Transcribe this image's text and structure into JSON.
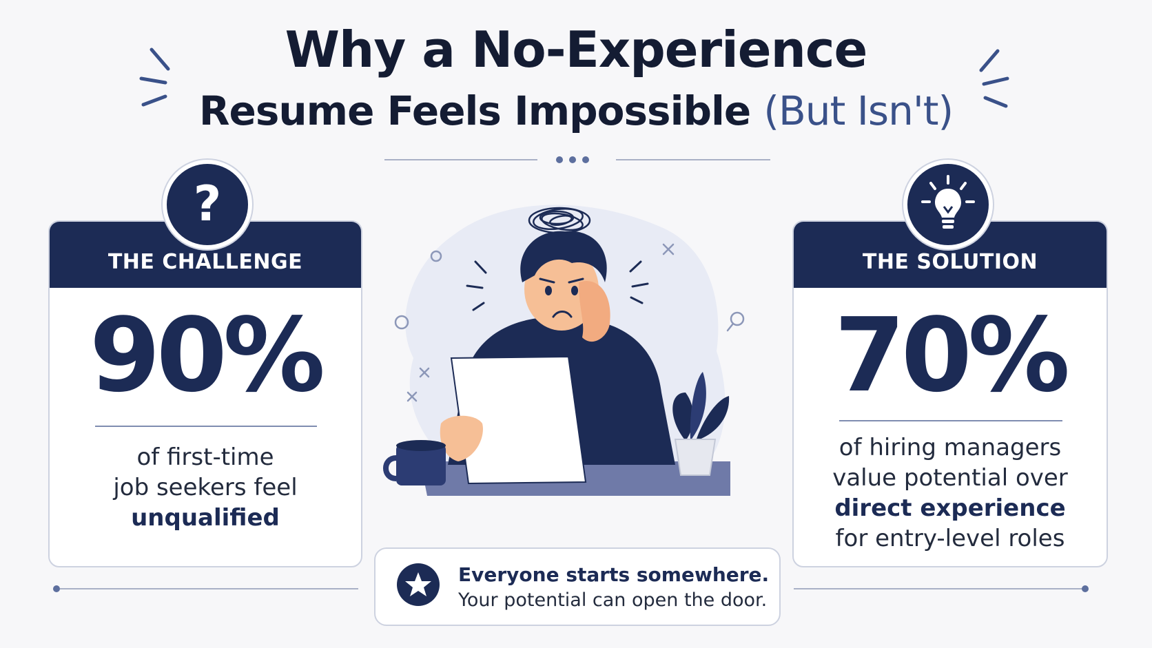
{
  "title": {
    "line1": "Why a No-Experience",
    "line2_main": "Resume Feels Impossible ",
    "line2_accent": "(But Isn't)"
  },
  "challenge": {
    "header": "THE CHALLENGE",
    "icon": "question-mark-icon",
    "stat": "90%",
    "desc_line1": "of first-time",
    "desc_line2": "job seekers feel",
    "desc_emphasis": "unqualified"
  },
  "solution": {
    "header": "THE SOLUTION",
    "icon": "lightbulb-icon",
    "stat": "70%",
    "desc_line1": "of hiring managers",
    "desc_line2": "value potential over",
    "desc_emphasis": "direct experience",
    "desc_line4": "for entry-level roles"
  },
  "note": {
    "icon": "star-icon",
    "line1": "Everyone starts somewhere.",
    "line2": "Your potential can open the door."
  },
  "colors": {
    "navy": "#1c2b55",
    "accent": "#3a5189",
    "background": "#f7f7f9",
    "border": "#cdd2e0"
  },
  "illustration": {
    "subject": "stressed-person-reading-document-icon",
    "props": [
      "coffee-mug-icon",
      "potted-plant-icon",
      "scribble-icon"
    ]
  }
}
